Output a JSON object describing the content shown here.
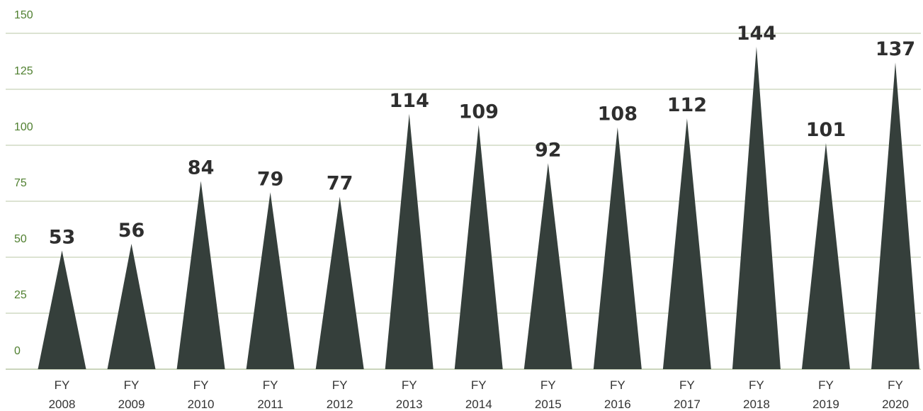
{
  "chart_data": {
    "type": "bar",
    "mark_shape": "triangle",
    "title": "",
    "xlabel": "",
    "ylabel": "",
    "ylim": [
      0,
      150
    ],
    "y_ticks": [
      0,
      25,
      50,
      75,
      100,
      125,
      150
    ],
    "grid": true,
    "legend": "none",
    "categories": [
      [
        "FY",
        "2008"
      ],
      [
        "FY",
        "2009"
      ],
      [
        "FY",
        "2010"
      ],
      [
        "FY",
        "2011"
      ],
      [
        "FY",
        "2012"
      ],
      [
        "FY",
        "2013"
      ],
      [
        "FY",
        "2014"
      ],
      [
        "FY",
        "2015"
      ],
      [
        "FY",
        "2016"
      ],
      [
        "FY",
        "2017"
      ],
      [
        "FY",
        "2018"
      ],
      [
        "FY",
        "2019"
      ],
      [
        "FY",
        "2020"
      ]
    ],
    "values": [
      53,
      56,
      84,
      79,
      77,
      114,
      109,
      92,
      108,
      112,
      144,
      101,
      137
    ],
    "colors": {
      "bar": "#353f3b",
      "grid": "#b9c7a6",
      "y_tick_text": "#4f7f2f",
      "x_tick_text": "#333333",
      "data_label": "#2e2e2e"
    }
  }
}
